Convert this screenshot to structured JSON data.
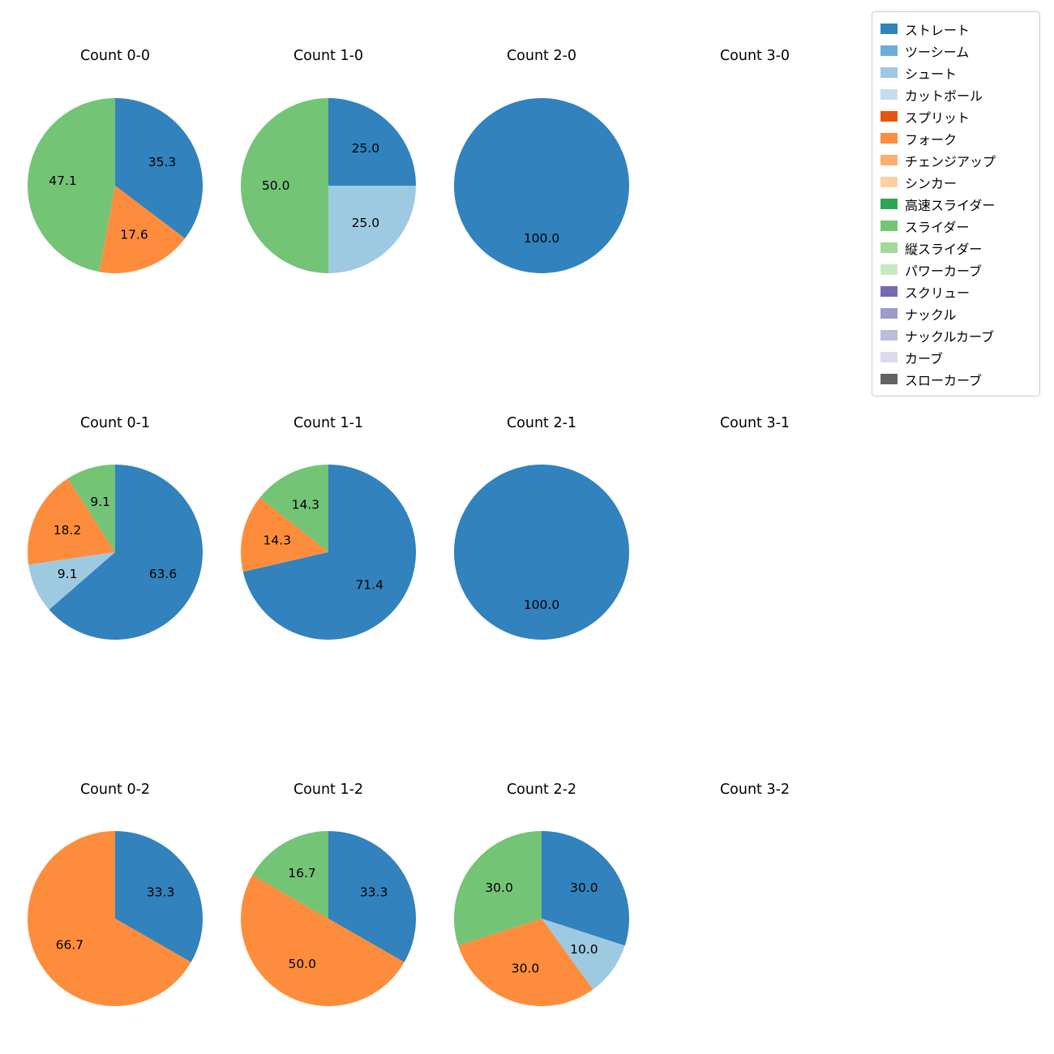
{
  "figure": {
    "background": "#ffffff",
    "text_color": "#000000"
  },
  "legend": {
    "position": "top-right",
    "items": [
      {
        "label": "ストレート",
        "color": "#3182bd"
      },
      {
        "label": "ツーシーム",
        "color": "#6baed6"
      },
      {
        "label": "シュート",
        "color": "#9ecae1"
      },
      {
        "label": "カットボール",
        "color": "#c6dbef"
      },
      {
        "label": "スプリット",
        "color": "#e6550d"
      },
      {
        "label": "フォーク",
        "color": "#fd8d3c"
      },
      {
        "label": "チェンジアップ",
        "color": "#fdae6b"
      },
      {
        "label": "シンカー",
        "color": "#fdd0a2"
      },
      {
        "label": "高速スライダー",
        "color": "#31a354"
      },
      {
        "label": "スライダー",
        "color": "#74c476"
      },
      {
        "label": "縦スライダー",
        "color": "#a1d99b"
      },
      {
        "label": "パワーカーブ",
        "color": "#c7e9c0"
      },
      {
        "label": "スクリュー",
        "color": "#756bb1"
      },
      {
        "label": "ナックル",
        "color": "#9e9ac8"
      },
      {
        "label": "ナックルカーブ",
        "color": "#bcbddc"
      },
      {
        "label": "カーブ",
        "color": "#dadaeb"
      },
      {
        "label": "スローカーブ",
        "color": "#636363"
      }
    ]
  },
  "chart_data": {
    "type": "pie",
    "start_angle": 90,
    "direction": "clockwise",
    "value_format": "percent-1dp",
    "label_radius": 0.6,
    "grid": {
      "rows": 3,
      "cols": 4
    },
    "charts": [
      {
        "title": "Count 0-0",
        "slices": [
          {
            "label": "ストレート",
            "value": 35.3
          },
          {
            "label": "フォーク",
            "value": 17.6
          },
          {
            "label": "スライダー",
            "value": 47.1
          }
        ]
      },
      {
        "title": "Count 1-0",
        "slices": [
          {
            "label": "ストレート",
            "value": 25.0
          },
          {
            "label": "シュート",
            "value": 25.0
          },
          {
            "label": "スライダー",
            "value": 50.0
          }
        ]
      },
      {
        "title": "Count 2-0",
        "slices": [
          {
            "label": "ストレート",
            "value": 100.0
          }
        ]
      },
      {
        "title": "Count 3-0",
        "slices": []
      },
      {
        "title": "Count 0-1",
        "slices": [
          {
            "label": "ストレート",
            "value": 63.6
          },
          {
            "label": "シュート",
            "value": 9.1
          },
          {
            "label": "フォーク",
            "value": 18.2
          },
          {
            "label": "スライダー",
            "value": 9.1
          }
        ]
      },
      {
        "title": "Count 1-1",
        "slices": [
          {
            "label": "ストレート",
            "value": 71.4
          },
          {
            "label": "フォーク",
            "value": 14.3
          },
          {
            "label": "スライダー",
            "value": 14.3
          }
        ]
      },
      {
        "title": "Count 2-1",
        "slices": [
          {
            "label": "ストレート",
            "value": 100.0
          }
        ]
      },
      {
        "title": "Count 3-1",
        "slices": []
      },
      {
        "title": "Count 0-2",
        "slices": [
          {
            "label": "ストレート",
            "value": 33.3
          },
          {
            "label": "フォーク",
            "value": 66.7
          }
        ]
      },
      {
        "title": "Count 1-2",
        "slices": [
          {
            "label": "ストレート",
            "value": 33.3
          },
          {
            "label": "フォーク",
            "value": 50.0
          },
          {
            "label": "スライダー",
            "value": 16.7
          }
        ]
      },
      {
        "title": "Count 2-2",
        "slices": [
          {
            "label": "ストレート",
            "value": 30.0
          },
          {
            "label": "シュート",
            "value": 10.0
          },
          {
            "label": "フォーク",
            "value": 30.0
          },
          {
            "label": "スライダー",
            "value": 30.0
          }
        ]
      },
      {
        "title": "Count 3-2",
        "slices": []
      }
    ]
  }
}
